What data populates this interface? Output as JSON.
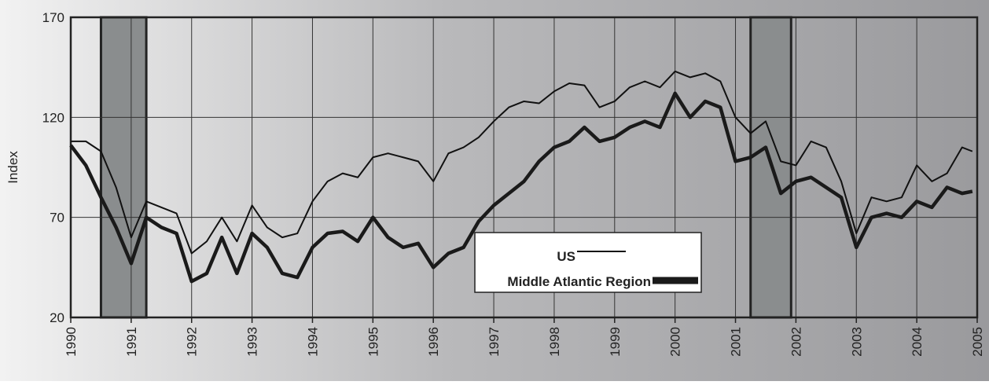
{
  "chart_data": {
    "type": "line",
    "y_label": "Index",
    "x": [
      1990,
      1990.25,
      1990.5,
      1990.75,
      1991,
      1991.25,
      1991.5,
      1991.75,
      1992,
      1992.25,
      1992.5,
      1992.75,
      1993,
      1993.25,
      1993.5,
      1993.75,
      1994,
      1994.25,
      1994.5,
      1994.75,
      1995,
      1995.25,
      1995.5,
      1995.75,
      1996,
      1996.25,
      1996.5,
      1996.75,
      1997,
      1997.25,
      1997.5,
      1997.75,
      1998,
      1998.25,
      1998.5,
      1998.75,
      1999,
      1999.25,
      1999.5,
      1999.75,
      2000,
      2000.25,
      2000.5,
      2000.75,
      2001,
      2001.25,
      2001.5,
      2001.75,
      2002,
      2002.25,
      2002.5,
      2002.75,
      2003,
      2003.25,
      2003.5,
      2003.75,
      2004,
      2004.25,
      2004.5,
      2004.75,
      2004.92
    ],
    "series": [
      {
        "name": "US",
        "color": "#111111",
        "width": 2,
        "values": [
          108,
          108,
          103,
          85,
          60,
          78,
          75,
          72,
          52,
          58,
          70,
          58,
          76,
          65,
          60,
          62,
          78,
          88,
          92,
          90,
          100,
          102,
          100,
          98,
          88,
          102,
          105,
          110,
          118,
          125,
          128,
          127,
          133,
          137,
          136,
          125,
          128,
          135,
          138,
          135,
          143,
          140,
          142,
          138,
          120,
          112,
          118,
          98,
          96,
          108,
          105,
          88,
          62,
          80,
          78,
          80,
          96,
          88,
          92,
          105,
          103
        ]
      },
      {
        "name": "Middle Atlantic Region",
        "color": "#1a1a1a",
        "width": 4.5,
        "values": [
          106,
          96,
          80,
          65,
          47,
          70,
          65,
          62,
          38,
          42,
          60,
          42,
          62,
          55,
          42,
          40,
          55,
          62,
          63,
          58,
          70,
          60,
          55,
          57,
          45,
          52,
          55,
          68,
          76,
          82,
          88,
          98,
          105,
          108,
          115,
          108,
          110,
          115,
          118,
          115,
          132,
          120,
          128,
          125,
          98,
          100,
          105,
          82,
          88,
          90,
          85,
          80,
          55,
          70,
          72,
          70,
          78,
          75,
          85,
          82,
          83
        ]
      }
    ],
    "xlim": [
      1990,
      2005
    ],
    "xticks": [
      1990,
      1991,
      1992,
      1993,
      1994,
      1995,
      1996,
      1997,
      1998,
      1999,
      2000,
      2001,
      2002,
      2003,
      2004,
      2005
    ],
    "ylim": [
      20,
      170
    ],
    "yticks": [
      20,
      70,
      120,
      170
    ],
    "shaded_regions": [
      [
        1990.5,
        1991.25
      ],
      [
        2001.25,
        2001.92
      ]
    ],
    "grid": true
  }
}
